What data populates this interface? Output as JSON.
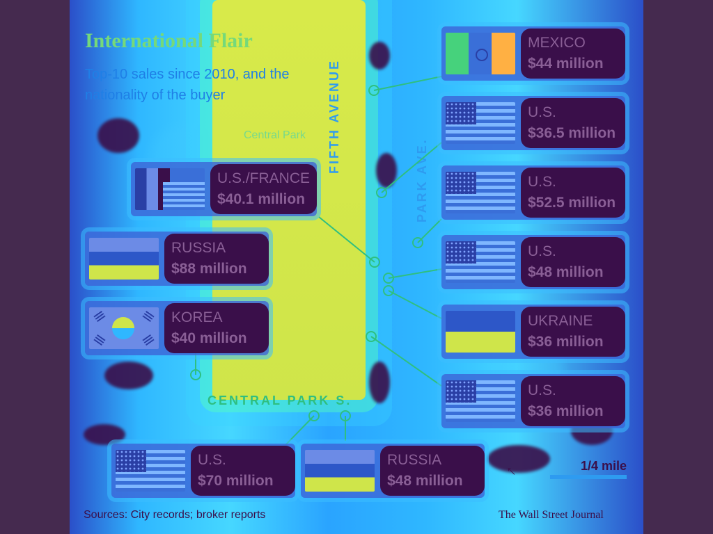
{
  "header": {
    "title": "International Flair",
    "subtitle": "Top-10 sales since 2010, and the nationality of the buyer"
  },
  "map_labels": {
    "park": "Central Park",
    "fifth_avenue": "FIFTH AVENUE",
    "park_avenue": "PARK AVE.",
    "central_park_south": "CENTRAL PARK S."
  },
  "sales": [
    {
      "country": "MEXICO",
      "price": "$44 million",
      "flag": "mexico"
    },
    {
      "country": "U.S.",
      "price": "$36.5 million",
      "flag": "usa"
    },
    {
      "country": "U.S./FRANCE",
      "price": "$40.1 million",
      "flag": "usa-france"
    },
    {
      "country": "U.S.",
      "price": "$52.5 million",
      "flag": "usa"
    },
    {
      "country": "RUSSIA",
      "price": "$88 million",
      "flag": "russia"
    },
    {
      "country": "U.S.",
      "price": "$48 million",
      "flag": "usa"
    },
    {
      "country": "KOREA",
      "price": "$40 million",
      "flag": "korea"
    },
    {
      "country": "UKRAINE",
      "price": "$36 million",
      "flag": "ukraine"
    },
    {
      "country": "U.S.",
      "price": "$36 million",
      "flag": "usa"
    },
    {
      "country": "U.S.",
      "price": "$70 million",
      "flag": "usa"
    },
    {
      "country": "RUSSIA",
      "price": "$48 million",
      "flag": "russia"
    }
  ],
  "scale": {
    "label": "1/4 mile"
  },
  "footer": {
    "sources": "Sources: City records; broker reports",
    "credit": "The Wall Street Journal"
  },
  "colors": {
    "background": "#452a4f",
    "park": "#cfe54a",
    "label_bg": "#3a0f4a"
  }
}
